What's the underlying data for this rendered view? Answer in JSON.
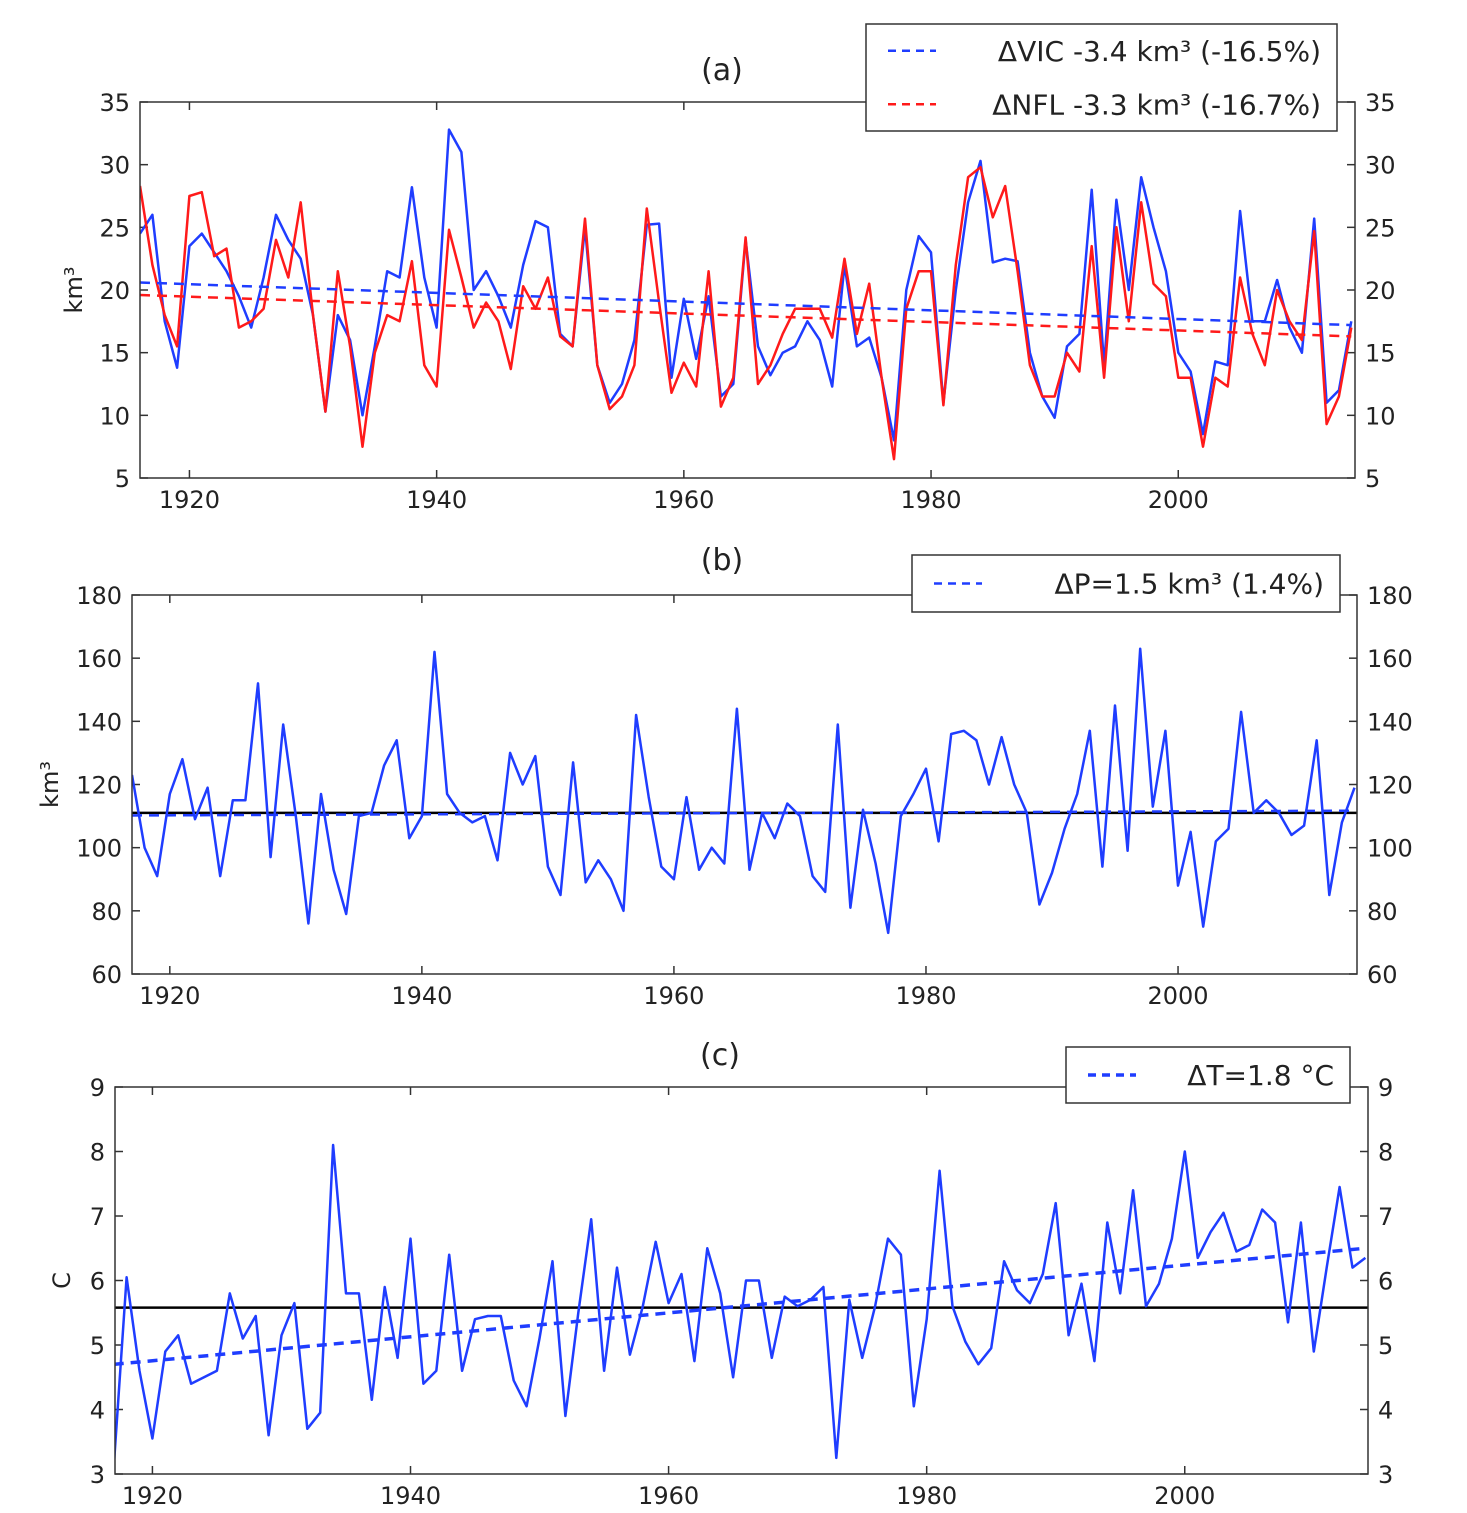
{
  "chart_data": [
    {
      "type": "line",
      "title": "(a)",
      "ylabel": "km³",
      "xlim": [
        1916,
        2014.3
      ],
      "ylim": [
        5,
        35
      ],
      "xticks": [
        1920,
        1940,
        1960,
        1980,
        2000
      ],
      "yticks": [
        5,
        10,
        15,
        20,
        25,
        30,
        35
      ],
      "grid": false,
      "legend_placement": "top-right",
      "x_start": 1916,
      "series": [
        {
          "name": "ΔVIC -3.4 km³ (-16.5%)",
          "color": "#1f3dff",
          "style": "solid",
          "values": [
            24.5,
            26,
            17.5,
            13.8,
            23.5,
            24.5,
            23,
            21.5,
            19.5,
            17,
            21,
            26,
            24,
            22.5,
            18,
            10.3,
            18,
            16,
            10,
            15.5,
            21.5,
            21,
            28.2,
            21,
            17,
            32.8,
            31,
            20,
            21.5,
            19.5,
            17,
            22,
            25.5,
            25,
            16.5,
            15.5,
            25,
            14,
            11,
            12.5,
            16,
            25.2,
            25.3,
            13,
            19.3,
            14.5,
            19.5,
            11.5,
            12.5,
            24,
            15.5,
            13.2,
            15,
            15.5,
            17.5,
            16,
            12.3,
            22,
            15.5,
            16.2,
            13,
            8,
            20,
            24.3,
            23,
            11,
            20,
            27,
            30.3,
            22.2,
            22.5,
            22.3,
            15,
            11.5,
            9.8,
            15.5,
            16.5,
            28,
            14,
            27.2,
            20,
            29,
            25,
            21.5,
            15,
            13.5,
            8.5,
            14.3,
            14,
            26.3,
            17.5,
            17.5,
            20.8,
            17,
            15,
            25.7,
            11,
            12,
            17.5
          ]
        },
        {
          "name": "ΔNFL -3.3 km³ (-16.7%)",
          "color": "#ff1a1a",
          "style": "solid",
          "values": [
            28.3,
            22,
            18,
            15.5,
            27.5,
            27.8,
            22.7,
            23.3,
            17,
            17.5,
            18.5,
            24,
            21,
            27,
            18,
            10.3,
            21.5,
            15.5,
            7.5,
            15,
            18,
            17.5,
            22.3,
            14,
            12.3,
            24.8,
            21,
            17,
            19,
            17.5,
            13.7,
            20.3,
            18.5,
            21,
            16.3,
            15.5,
            25.7,
            14,
            10.5,
            11.5,
            14,
            26.5,
            19,
            11.8,
            14.2,
            12.3,
            21.5,
            10.7,
            13,
            24.2,
            12.5,
            14,
            16.5,
            18.5,
            18.5,
            18.5,
            16.2,
            22.5,
            16.5,
            20.5,
            13,
            6.5,
            18.5,
            21.5,
            21.5,
            10.8,
            22,
            29,
            29.8,
            25.8,
            28.3,
            21.5,
            14,
            11.5,
            11.5,
            15,
            13.5,
            23.5,
            13,
            25,
            17.5,
            27,
            20.5,
            19.5,
            13,
            13,
            7.5,
            13,
            12.3,
            21,
            16.5,
            14,
            20,
            17.5,
            16,
            24.7,
            9.3,
            11.5,
            17
          ]
        }
      ],
      "trends": [
        {
          "series": "ΔVIC -3.4 km³ (-16.5%)",
          "color": "#1f3dff",
          "style": "dashed",
          "from": [
            1916,
            20.6
          ],
          "to": [
            2014,
            17.2
          ]
        },
        {
          "series": "ΔNFL -3.3 km³ (-16.7%)",
          "color": "#ff1a1a",
          "style": "dashed",
          "from": [
            1916,
            19.6
          ],
          "to": [
            2014,
            16.3
          ]
        }
      ]
    },
    {
      "type": "line",
      "title": "(b)",
      "ylabel": "km³",
      "xlim": [
        1917,
        2014.2
      ],
      "ylim": [
        60,
        180
      ],
      "xticks": [
        1920,
        1940,
        1960,
        1980,
        2000
      ],
      "yticks": [
        60,
        80,
        100,
        120,
        140,
        160,
        180
      ],
      "grid": false,
      "legend_placement": "top-right",
      "x_start": 1917,
      "series": [
        {
          "name": "ΔP=1.5 km³  (1.4%)",
          "color": "#1f3dff",
          "style": "solid",
          "values": [
            123,
            100,
            91,
            117,
            128,
            109,
            119,
            91,
            115,
            115,
            152,
            97,
            139,
            110,
            76,
            117,
            93,
            79,
            110,
            111,
            126,
            134,
            103,
            110,
            162,
            117,
            111,
            108,
            110,
            96,
            130,
            120,
            129,
            94,
            85,
            127,
            89,
            96,
            90,
            80,
            142,
            116,
            94,
            90,
            116,
            93,
            100,
            95,
            144,
            93,
            111,
            103,
            114,
            110,
            91,
            86,
            139,
            81,
            112,
            95,
            73,
            110,
            117,
            125,
            102,
            136,
            137,
            134,
            120,
            135,
            120,
            111,
            82,
            92,
            106,
            117,
            137,
            94,
            145,
            99,
            163,
            113,
            137,
            88,
            105,
            75,
            102,
            106,
            143,
            111,
            115,
            111,
            104,
            107,
            134,
            85,
            108,
            119
          ]
        }
      ],
      "trends": [
        {
          "series": "ΔP=1.5 km³  (1.4%)",
          "color": "#1f3dff",
          "style": "dashed",
          "from": [
            1917,
            110.2
          ],
          "to": [
            2014,
            111.7
          ]
        }
      ],
      "mean_line": {
        "value": 111,
        "color": "#000000"
      }
    },
    {
      "type": "line",
      "title": "(c)",
      "ylabel": "C",
      "xlim": [
        1917.1,
        2014.2
      ],
      "ylim": [
        3,
        9
      ],
      "xticks": [
        1920,
        1940,
        1960,
        1980,
        2000
      ],
      "yticks": [
        3,
        4,
        5,
        6,
        7,
        8,
        9
      ],
      "grid": false,
      "legend_placement": "top-right",
      "x_start": 1917,
      "series": [
        {
          "name": "ΔT=1.8 °C",
          "color": "#1f3dff",
          "style": "solid",
          "values": [
            3.1,
            6.05,
            4.6,
            3.55,
            4.9,
            5.15,
            4.4,
            4.5,
            4.6,
            5.8,
            5.1,
            5.45,
            3.6,
            5.15,
            5.65,
            3.7,
            3.95,
            8.1,
            5.8,
            5.8,
            4.15,
            5.9,
            4.8,
            6.65,
            4.4,
            4.6,
            6.4,
            4.6,
            5.4,
            5.45,
            5.45,
            4.45,
            4.05,
            5.1,
            6.3,
            3.9,
            5.5,
            6.95,
            4.6,
            6.2,
            4.85,
            5.6,
            6.6,
            5.65,
            6.1,
            4.75,
            6.5,
            5.8,
            4.5,
            6.0,
            6.0,
            4.8,
            5.75,
            5.6,
            5.7,
            5.9,
            3.25,
            5.7,
            4.8,
            5.6,
            6.65,
            6.4,
            4.05,
            5.4,
            7.7,
            5.6,
            5.05,
            4.7,
            4.95,
            6.3,
            5.85,
            5.65,
            6.1,
            7.2,
            5.15,
            5.95,
            4.75,
            6.9,
            5.8,
            7.4,
            5.6,
            5.95,
            6.65,
            8.0,
            6.35,
            6.75,
            7.05,
            6.45,
            6.55,
            7.1,
            6.9,
            5.35,
            6.9,
            4.9,
            6.2,
            7.45,
            6.2,
            6.35
          ]
        }
      ],
      "trends": [
        {
          "series": "ΔT=1.8 °C",
          "color": "#1f3dff",
          "style": "dashed",
          "from": [
            1917,
            4.7
          ],
          "to": [
            2014,
            6.5
          ]
        }
      ],
      "mean_line": {
        "value": 5.58,
        "color": "#000000"
      }
    }
  ]
}
